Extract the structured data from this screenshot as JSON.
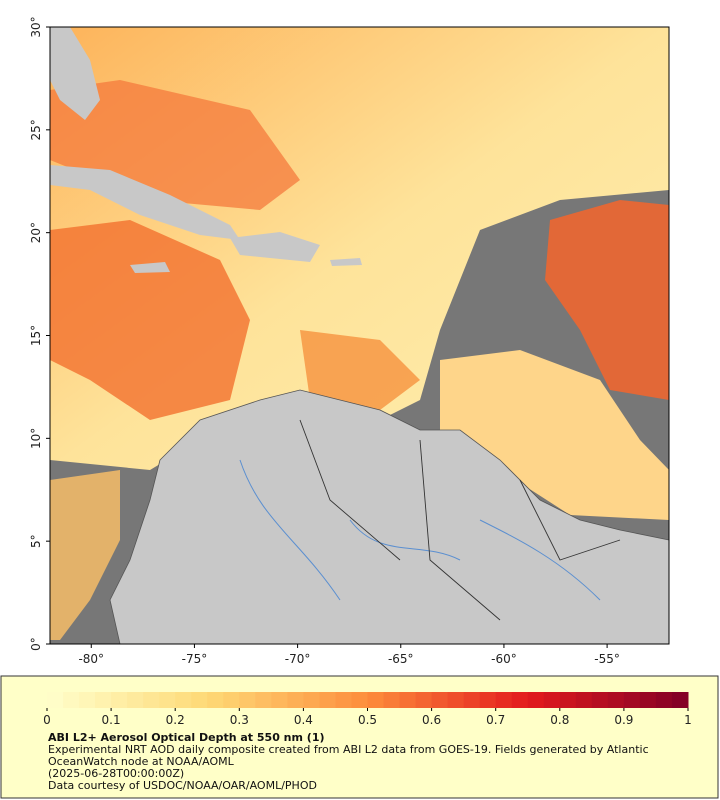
{
  "map": {
    "xlim": [
      -82,
      -52
    ],
    "ylim": [
      0,
      30
    ],
    "xticks": [
      {
        "value": -80,
        "label": "-80°"
      },
      {
        "value": -75,
        "label": "-75°"
      },
      {
        "value": -70,
        "label": "-70°"
      },
      {
        "value": -65,
        "label": "-65°"
      },
      {
        "value": -60,
        "label": "-60°"
      },
      {
        "value": -55,
        "label": "-55°"
      }
    ],
    "yticks": [
      {
        "value": 0,
        "label": "0°"
      },
      {
        "value": 5,
        "label": "5°"
      },
      {
        "value": 10,
        "label": "10°"
      },
      {
        "value": 15,
        "label": "15°"
      },
      {
        "value": 20,
        "label": "20°"
      },
      {
        "value": 25,
        "label": "25°"
      },
      {
        "value": 30,
        "label": "30°"
      }
    ]
  },
  "colorbar": {
    "title": "ABI L2+ Aerosol Optical Depth at 550 nm (1)",
    "range": [
      0,
      1
    ],
    "ticks": [
      0,
      0.1,
      0.2,
      0.3,
      0.4,
      0.5,
      0.6,
      0.7,
      0.8,
      0.9,
      1
    ],
    "colors": [
      "#ffffcc",
      "#fed976",
      "#fd8d3c",
      "#e31a1c",
      "#800026"
    ]
  },
  "caption": {
    "line1": "Experimental NRT AOD daily composite created from ABI L2 data from GOES-19. Fields generated by Atlantic OceanWatch node at NOAA/AOML",
    "line2": "(2025-06-28T00:00:00Z)",
    "line3": "Data courtesy of USDOC/NOAA/OAR/AOML/PHOD"
  }
}
